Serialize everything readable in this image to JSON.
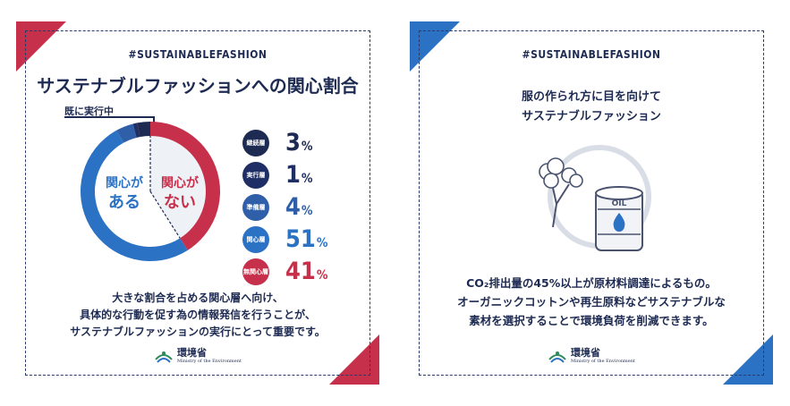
{
  "left": {
    "hashtag": "#SUSTAINABLEFASHION",
    "title": "サステナブルファッションへの関心割合",
    "already_label": "既に実行中",
    "donut_label_care_1": "関心が",
    "donut_label_care_2": "ある",
    "donut_label_nocare_1": "関心が",
    "donut_label_nocare_2": "ない",
    "description": [
      "大きな割合を占める関心層へ向け、",
      "具体的な行動を促す為の情報発信を行うことが、",
      "サステナブルファッションの実行にとって重要です。"
    ],
    "logo_ja": "環境省",
    "logo_en": "Ministry of the Environment"
  },
  "right": {
    "hashtag": "#SUSTAINABLEFASHION",
    "title_1": "服の作られ方に目を向けて",
    "title_2": "サステナブルファッション",
    "oil_label": "OIL",
    "description": [
      "CO₂排出量の45%以上が原材料調達によるもの。",
      "オーガニックコットンや再生原料などサステナブルな",
      "素材を選択することで環境負荷を削減できます。"
    ],
    "logo_ja": "環境省",
    "logo_en": "Ministry of the Environment"
  },
  "colors": {
    "navy": "#1d2a52",
    "red": "#c7304b",
    "blue": "#2b72c4",
    "mid_blue": "#2e5fa8",
    "light_blue": "#3f8fd6",
    "dark_navy": "#1f2f66"
  },
  "chart_data": {
    "type": "pie",
    "categories": [
      "継続層",
      "実行層",
      "準備層",
      "関心層",
      "無関心層"
    ],
    "values": [
      3,
      1,
      4,
      51,
      41
    ],
    "unit": "%",
    "colors": [
      "#1d2a52",
      "#1f2f66",
      "#2e5fa8",
      "#2b72c4",
      "#c7304b"
    ],
    "title": "サステナブルファッションへの関心割合"
  }
}
